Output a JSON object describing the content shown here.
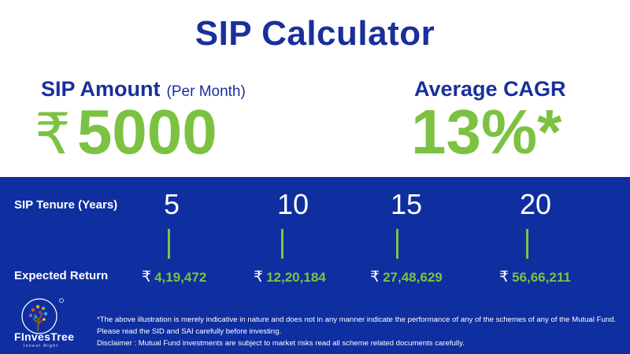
{
  "title": "SIP Calculator",
  "sip_amount": {
    "label": "SIP Amount",
    "sublabel": "(Per Month)",
    "currency": "₹",
    "value": "5000"
  },
  "cagr": {
    "label": "Average CAGR",
    "value": "13%*"
  },
  "table": {
    "tenure_label": "SIP Tenure (Years)",
    "return_label": "Expected Return",
    "currency": "₹",
    "columns": [
      {
        "years": "5",
        "return": "4,19,472"
      },
      {
        "years": "10",
        "return": "12,20,184"
      },
      {
        "years": "15",
        "return": "27,48,629"
      },
      {
        "years": "20",
        "return": "56,66,211"
      }
    ]
  },
  "brand": {
    "name": "FInvesTree",
    "tagline": "Invest Right"
  },
  "disclaimer": {
    "line1": "*The above illustration is merely indicative in nature and does not in any manner indicate the performance of any of the schemes of any of the Mutual Fund. Please read the SID and SAI carefully before investing.",
    "line2": "Disclaimer : Mutual Fund investments are subject to market risks read all scheme related documents carefully."
  },
  "colors": {
    "navy": "#1a2f9c",
    "band": "#0f2ea0",
    "green": "#7cc242"
  }
}
